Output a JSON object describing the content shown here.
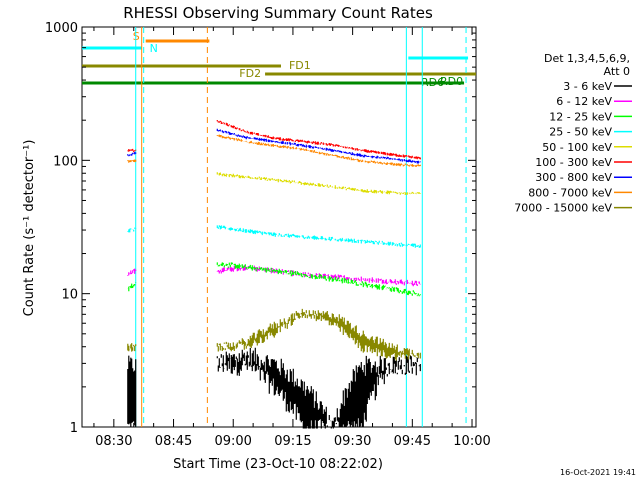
{
  "chart_data": {
    "type": "line",
    "title": "RHESSI Observing Summary Count Rates",
    "xlabel": "Start Time (23-Oct-10 08:22:02)",
    "ylabel": "Count Rate (s⁻¹ detector⁻¹)",
    "yscale": "log",
    "ylim": [
      1,
      1000
    ],
    "xlim": [
      "08:22",
      "10:01"
    ],
    "xticks": [
      "08:30",
      "08:45",
      "09:00",
      "09:15",
      "09:30",
      "09:45",
      "10:00"
    ],
    "yticks": [
      "1",
      "10",
      "100",
      "1000"
    ],
    "footer": "16-Oct-2021 19:41",
    "legend": {
      "position": "right",
      "header": [
        "Det 1,3,4,5,6,9,",
        "Att 0"
      ],
      "entries": [
        {
          "label": "3 - 6 keV",
          "color": "#000000"
        },
        {
          "label": "6 - 12 keV",
          "color": "#ff00ff"
        },
        {
          "label": "12 - 25 keV",
          "color": "#00ff00"
        },
        {
          "label": "25 - 50 keV",
          "color": "#00ffff"
        },
        {
          "label": "50 - 100 keV",
          "color": "#dddd00"
        },
        {
          "label": "100 - 300 keV",
          "color": "#ff0000"
        },
        {
          "label": "300 - 800 keV",
          "color": "#0000ff"
        },
        {
          "label": "800 - 7000 keV",
          "color": "#ff8800"
        },
        {
          "label": "7000 - 15000 keV",
          "color": "#888800"
        }
      ]
    },
    "flags": [
      {
        "label": "S",
        "start": "08:38",
        "end": "08:54",
        "color": "#ff8800"
      },
      {
        "label": "N",
        "start": "08:22",
        "end": "08:37",
        "color": "#00ffff"
      },
      {
        "label": "N",
        "start": "09:44",
        "end": "09:59",
        "color": "#00ffff",
        "labeled": false
      },
      {
        "label": "FD1",
        "start": "08:22",
        "end": "09:12",
        "color": "#888800"
      },
      {
        "label": "FD2",
        "start": "09:08",
        "end": "10:01",
        "color": "#888800"
      },
      {
        "label": "RD0",
        "start": "08:22",
        "end": "09:57",
        "color": "#008800"
      },
      {
        "label": "RD6",
        "start": "09:54",
        "end": "09:58",
        "color": "#008800"
      }
    ],
    "vlines": [
      {
        "time": "08:35.5",
        "color": "#00ffff",
        "style": "solid"
      },
      {
        "time": "08:37.5",
        "color": "#00ffff",
        "style": "dashed"
      },
      {
        "time": "08:37",
        "color": "#ff8800",
        "style": "solid"
      },
      {
        "time": "08:53.5",
        "color": "#ff8800",
        "style": "dashed"
      },
      {
        "time": "09:43.5",
        "color": "#00ffff",
        "style": "solid"
      },
      {
        "time": "09:47.5",
        "color": "#00ffff",
        "style": "solid"
      },
      {
        "time": "09:58.5",
        "color": "#00ffff",
        "style": "dashed"
      }
    ],
    "segments": [
      {
        "start": "08:33.5",
        "end": "08:35.5"
      },
      {
        "start": "08:56",
        "end": "09:47"
      }
    ],
    "series": [
      {
        "name": "3 - 6 keV",
        "color": "#000000",
        "noise": 0.35,
        "values": [
          [
            [
              1.0,
              3.0
            ],
            [
              1.0,
              3.0
            ]
          ],
          [
            [
              3.0,
              3.0
            ],
            [
              3.5,
              3.0
            ],
            [
              3.0,
              2.0
            ],
            [
              2.0,
              1.0
            ],
            [
              1.0,
              1.0
            ],
            [
              1.0,
              3.0
            ],
            [
              3.0,
              3.0
            ],
            [
              3.0,
              3.0
            ]
          ]
        ]
      },
      {
        "name": "6 - 12 keV",
        "color": "#ff00ff",
        "noise": 0.08,
        "values": [
          [
            [
              14,
              14
            ],
            [
              15,
              15
            ]
          ],
          [
            [
              15,
              15
            ],
            [
              16,
              16
            ],
            [
              15,
              15
            ],
            [
              14,
              14
            ],
            [
              13.5,
              13.5
            ],
            [
              13,
              13
            ],
            [
              12.5,
              12.5
            ],
            [
              12,
              12
            ]
          ]
        ]
      },
      {
        "name": "12 - 25 keV",
        "color": "#00ff00",
        "noise": 0.08,
        "values": [
          [
            [
              11,
              11
            ],
            [
              12,
              12
            ]
          ],
          [
            [
              17,
              17
            ],
            [
              16,
              16
            ],
            [
              15,
              15
            ],
            [
              14,
              14
            ],
            [
              13,
              13
            ],
            [
              12,
              12
            ],
            [
              11,
              11
            ],
            [
              10,
              10
            ]
          ]
        ]
      },
      {
        "name": "25 - 50 keV",
        "color": "#00ffff",
        "noise": 0.05,
        "values": [
          [
            [
              30,
              30
            ],
            [
              31,
              31
            ]
          ],
          [
            [
              32,
              32
            ],
            [
              30,
              30
            ],
            [
              28,
              28
            ],
            [
              27,
              27
            ],
            [
              26,
              26
            ],
            [
              25,
              25
            ],
            [
              24,
              24
            ],
            [
              23,
              23
            ]
          ]
        ]
      },
      {
        "name": "50 - 100 keV",
        "color": "#dddd00",
        "noise": 0.04,
        "values": [
          [
            [],
            []
          ],
          [
            [
              80,
              80
            ],
            [
              76,
              76
            ],
            [
              72,
              72
            ],
            [
              68,
              68
            ],
            [
              64,
              64
            ],
            [
              60,
              60
            ],
            [
              58,
              58
            ],
            [
              57,
              57
            ]
          ]
        ]
      },
      {
        "name": "100 - 300 keV",
        "color": "#ff0000",
        "noise": 0.03,
        "values": [
          [
            [
              120,
              120
            ],
            [
              120,
              120
            ]
          ],
          [
            [
              200,
              200
            ],
            [
              165,
              165
            ],
            [
              148,
              148
            ],
            [
              140,
              140
            ],
            [
              132,
              132
            ],
            [
              120,
              120
            ],
            [
              112,
              112
            ],
            [
              105,
              105
            ]
          ]
        ]
      },
      {
        "name": "300 - 800 keV",
        "color": "#0000ff",
        "noise": 0.03,
        "values": [
          [
            [
              110,
              110
            ],
            [
              115,
              115
            ]
          ],
          [
            [
              170,
              170
            ],
            [
              150,
              150
            ],
            [
              140,
              140
            ],
            [
              130,
              130
            ],
            [
              120,
              120
            ],
            [
              110,
              110
            ],
            [
              104,
              104
            ],
            [
              98,
              98
            ]
          ]
        ]
      },
      {
        "name": "800 - 7000 keV",
        "color": "#ff8800",
        "noise": 0.03,
        "values": [
          [
            [
              100,
              100
            ],
            [
              100,
              100
            ]
          ],
          [
            [
              155,
              155
            ],
            [
              140,
              140
            ],
            [
              130,
              130
            ],
            [
              122,
              122
            ],
            [
              110,
              110
            ],
            [
              100,
              100
            ],
            [
              95,
              95
            ],
            [
              92,
              92
            ]
          ]
        ]
      },
      {
        "name": "7000 - 15000 keV",
        "color": "#888800",
        "noise": 0.15,
        "values": [
          [
            [
              4,
              4
            ],
            [
              4,
              4
            ]
          ],
          [
            [
              4,
              4
            ],
            [
              4,
              4.5
            ],
            [
              5,
              6
            ],
            [
              7,
              7.5
            ],
            [
              7,
              6
            ],
            [
              5,
              4
            ],
            [
              4,
              3.5
            ],
            [
              3.5,
              3.5
            ]
          ]
        ]
      }
    ]
  }
}
